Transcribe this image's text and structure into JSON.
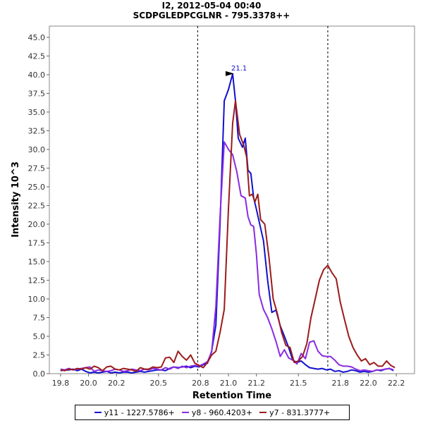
{
  "chart_data": {
    "type": "line",
    "title": "I2, 2012-05-04 00:40",
    "subtitle": "SCDPGLEDPCGLNR - 795.3378++",
    "xlabel": "Retention Time",
    "ylabel": "Intensity 10^3",
    "xlim": [
      19.72,
      22.33
    ],
    "ylim": [
      0,
      46.5
    ],
    "xticks": [
      "19.8",
      "20.0",
      "20.2",
      "20.5",
      "20.8",
      "21.0",
      "21.2",
      "21.5",
      "21.8",
      "22.0",
      "22.2"
    ],
    "xtick_values": [
      19.8,
      20.0,
      20.2,
      20.5,
      20.8,
      21.0,
      21.2,
      21.5,
      21.8,
      22.0,
      22.2
    ],
    "yticks": [
      "0.0",
      "2.5",
      "5.0",
      "7.5",
      "10.0",
      "12.5",
      "15.0",
      "17.5",
      "20.0",
      "22.5",
      "25.0",
      "27.5",
      "30.0",
      "32.5",
      "35.0",
      "37.5",
      "40.0",
      "42.5",
      "45.0"
    ],
    "ytick_values": [
      0,
      2.5,
      5,
      7.5,
      10,
      12.5,
      15,
      17.5,
      20,
      22.5,
      25,
      27.5,
      30,
      32.5,
      35,
      37.5,
      40,
      42.5,
      45
    ],
    "boundaries": [
      20.78,
      21.71
    ],
    "peak_annotation": {
      "label": "21.1",
      "x": 21.05,
      "y": 40.1
    },
    "legend_position": "bottom",
    "series": [
      {
        "name": "y11 - 1227.5786+",
        "color": "#1010d0",
        "x": [
          19.8,
          19.83,
          19.86,
          19.89,
          19.92,
          19.95,
          19.98,
          20.01,
          20.04,
          20.07,
          20.1,
          20.13,
          20.16,
          20.19,
          20.22,
          20.25,
          20.28,
          20.31,
          20.34,
          20.37,
          20.4,
          20.43,
          20.46,
          20.49,
          20.52,
          20.55,
          20.58,
          20.61,
          20.64,
          20.67,
          20.7,
          20.73,
          20.76,
          20.79,
          20.82,
          20.85,
          20.88,
          20.91,
          20.94,
          20.97,
          21.0,
          21.03,
          21.05,
          21.07,
          21.1,
          21.12,
          21.14,
          21.16,
          21.18,
          21.2,
          21.22,
          21.25,
          21.28,
          21.31,
          21.34,
          21.37,
          21.4,
          21.43,
          21.46,
          21.49,
          21.52,
          21.55,
          21.58,
          21.61,
          21.64,
          21.67,
          21.7,
          21.73,
          21.76,
          21.79,
          21.82,
          21.85,
          21.88,
          21.91,
          21.94,
          21.97,
          22.0,
          22.03,
          22.06,
          22.09,
          22.12,
          22.15,
          22.18
        ],
        "values": [
          0.4,
          0.5,
          0.5,
          0.6,
          0.4,
          0.6,
          0.3,
          0.1,
          0.2,
          0.1,
          0.2,
          0.3,
          0.1,
          0.2,
          0.1,
          0.2,
          0.2,
          0.1,
          0.2,
          0.3,
          0.2,
          0.3,
          0.4,
          0.5,
          0.5,
          0.4,
          0.7,
          0.9,
          0.8,
          0.9,
          1.0,
          0.8,
          1.0,
          0.9,
          1.2,
          1.4,
          3.0,
          6.5,
          20.0,
          36.5,
          38.0,
          40.1,
          36.5,
          31.5,
          30.3,
          31.5,
          27.2,
          26.8,
          23.5,
          22.0,
          20.3,
          17.8,
          12.5,
          8.2,
          8.5,
          6.4,
          5.0,
          3.5,
          1.8,
          1.5,
          1.7,
          1.2,
          0.8,
          0.7,
          0.6,
          0.7,
          0.5,
          0.6,
          0.3,
          0.4,
          0.2,
          0.3,
          0.5,
          0.4,
          0.2,
          0.3,
          0.2,
          0.3,
          0.5,
          0.4,
          0.6,
          0.7,
          0.4
        ]
      },
      {
        "name": "y8 - 960.4203+",
        "color": "#8a2be2",
        "x": [
          19.8,
          19.83,
          19.86,
          19.89,
          19.92,
          19.95,
          19.98,
          20.01,
          20.04,
          20.07,
          20.1,
          20.13,
          20.16,
          20.19,
          20.22,
          20.25,
          20.28,
          20.31,
          20.34,
          20.37,
          20.4,
          20.43,
          20.46,
          20.49,
          20.52,
          20.55,
          20.58,
          20.61,
          20.64,
          20.67,
          20.7,
          20.73,
          20.76,
          20.79,
          20.82,
          20.85,
          20.88,
          20.91,
          20.94,
          20.97,
          21.0,
          21.03,
          21.06,
          21.09,
          21.12,
          21.14,
          21.16,
          21.18,
          21.2,
          21.22,
          21.25,
          21.28,
          21.31,
          21.34,
          21.37,
          21.4,
          21.43,
          21.46,
          21.49,
          21.52,
          21.55,
          21.58,
          21.61,
          21.64,
          21.67,
          21.7,
          21.73,
          21.76,
          21.79,
          21.82,
          21.85,
          21.88,
          21.91,
          21.94,
          21.97,
          22.0,
          22.03,
          22.06,
          22.09,
          22.12,
          22.15,
          22.18
        ],
        "values": [
          0.6,
          0.5,
          0.7,
          0.5,
          0.6,
          0.7,
          0.8,
          0.9,
          0.3,
          0.5,
          0.4,
          0.3,
          0.4,
          0.6,
          0.5,
          0.3,
          0.4,
          0.6,
          0.5,
          0.4,
          0.6,
          0.5,
          0.7,
          0.6,
          0.5,
          0.8,
          0.6,
          0.9,
          0.7,
          1.0,
          0.8,
          1.0,
          1.1,
          1.0,
          1.3,
          1.6,
          2.9,
          9.0,
          21.0,
          31.0,
          30.0,
          29.3,
          27.0,
          23.8,
          23.5,
          21.0,
          19.9,
          19.7,
          16.0,
          10.6,
          8.6,
          7.5,
          6.0,
          4.3,
          2.3,
          3.2,
          2.1,
          1.8,
          1.3,
          2.7,
          2.0,
          4.2,
          4.4,
          3.0,
          2.4,
          2.3,
          2.3,
          1.8,
          1.2,
          1.0,
          1.0,
          0.9,
          0.6,
          0.4,
          0.5,
          0.4,
          0.3,
          0.5,
          0.5,
          0.6,
          0.7,
          0.5
        ]
      },
      {
        "name": "y7 - 831.3777+",
        "color": "#9b1b1b",
        "x": [
          19.8,
          19.83,
          19.86,
          19.89,
          19.92,
          19.95,
          19.98,
          20.01,
          20.04,
          20.07,
          20.1,
          20.13,
          20.16,
          20.19,
          20.22,
          20.25,
          20.28,
          20.31,
          20.34,
          20.37,
          20.4,
          20.43,
          20.46,
          20.49,
          20.52,
          20.55,
          20.58,
          20.61,
          20.64,
          20.67,
          20.7,
          20.73,
          20.76,
          20.79,
          20.82,
          20.85,
          20.88,
          20.91,
          20.94,
          20.97,
          21.0,
          21.03,
          21.05,
          21.08,
          21.11,
          21.13,
          21.15,
          21.17,
          21.19,
          21.21,
          21.23,
          21.26,
          21.29,
          21.32,
          21.35,
          21.38,
          21.41,
          21.44,
          21.47,
          21.5,
          21.53,
          21.56,
          21.59,
          21.62,
          21.65,
          21.68,
          21.71,
          21.74,
          21.77,
          21.8,
          21.83,
          21.86,
          21.89,
          21.92,
          21.95,
          21.98,
          22.01,
          22.04,
          22.07,
          22.1,
          22.13,
          22.16,
          22.19
        ],
        "values": [
          0.5,
          0.4,
          0.6,
          0.5,
          0.7,
          0.6,
          0.8,
          0.6,
          1.0,
          0.8,
          0.4,
          0.9,
          1.0,
          0.6,
          0.5,
          0.7,
          0.6,
          0.5,
          0.3,
          0.8,
          0.6,
          0.6,
          0.9,
          0.8,
          0.9,
          2.1,
          2.2,
          1.5,
          3.0,
          2.3,
          1.8,
          2.5,
          1.4,
          1.1,
          0.8,
          1.5,
          2.5,
          3.0,
          5.5,
          8.6,
          22.0,
          33.5,
          36.5,
          32.0,
          30.5,
          29.0,
          23.8,
          24.0,
          23.0,
          24.0,
          20.6,
          20.0,
          15.5,
          10.0,
          8.0,
          5.5,
          3.8,
          3.5,
          1.5,
          1.7,
          2.3,
          4.0,
          7.5,
          10.0,
          12.5,
          13.9,
          14.5,
          13.5,
          12.7,
          9.5,
          7.2,
          5.0,
          3.5,
          2.5,
          1.7,
          2.0,
          1.2,
          1.5,
          1.0,
          1.0,
          1.7,
          1.1,
          0.8
        ]
      }
    ]
  }
}
